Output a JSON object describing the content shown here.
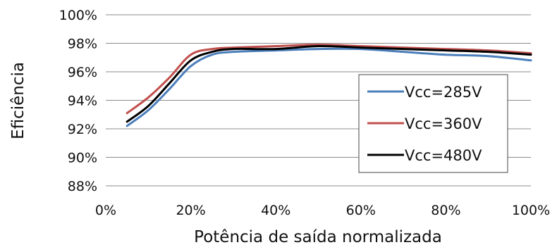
{
  "chart_data": {
    "type": "line",
    "title": "",
    "xlabel": "Potência de saída normalizada",
    "ylabel": "Eficiência",
    "xlim": [
      0,
      100
    ],
    "ylim": [
      88,
      100
    ],
    "x_ticks": [
      "0%",
      "20%",
      "40%",
      "60%",
      "80%",
      "100%"
    ],
    "y_ticks": [
      "100%",
      "98%",
      "96%",
      "94%",
      "92%",
      "90%",
      "88%"
    ],
    "grid": "horizontal",
    "legend_position": "right",
    "series": [
      {
        "name": "Vcc=285V",
        "color": "#4a7ebb",
        "points": [
          [
            5,
            92.2
          ],
          [
            10,
            93.3
          ],
          [
            15,
            94.8
          ],
          [
            20,
            96.4
          ],
          [
            25,
            97.2
          ],
          [
            30,
            97.4
          ],
          [
            40,
            97.5
          ],
          [
            50,
            97.6
          ],
          [
            60,
            97.6
          ],
          [
            70,
            97.4
          ],
          [
            80,
            97.2
          ],
          [
            90,
            97.1
          ],
          [
            100,
            96.8
          ]
        ]
      },
      {
        "name": "Vcc=360V",
        "color": "#c0504d",
        "points": [
          [
            5,
            93.1
          ],
          [
            10,
            94.2
          ],
          [
            15,
            95.6
          ],
          [
            20,
            97.2
          ],
          [
            25,
            97.6
          ],
          [
            30,
            97.7
          ],
          [
            40,
            97.8
          ],
          [
            50,
            97.9
          ],
          [
            60,
            97.8
          ],
          [
            70,
            97.7
          ],
          [
            80,
            97.6
          ],
          [
            90,
            97.5
          ],
          [
            100,
            97.3
          ]
        ]
      },
      {
        "name": "Vcc=480V",
        "color": "#000000",
        "points": [
          [
            5,
            92.5
          ],
          [
            10,
            93.6
          ],
          [
            15,
            95.2
          ],
          [
            20,
            96.8
          ],
          [
            25,
            97.4
          ],
          [
            30,
            97.6
          ],
          [
            40,
            97.6
          ],
          [
            50,
            97.8
          ],
          [
            60,
            97.7
          ],
          [
            70,
            97.6
          ],
          [
            80,
            97.5
          ],
          [
            90,
            97.4
          ],
          [
            100,
            97.2
          ]
        ]
      }
    ]
  }
}
